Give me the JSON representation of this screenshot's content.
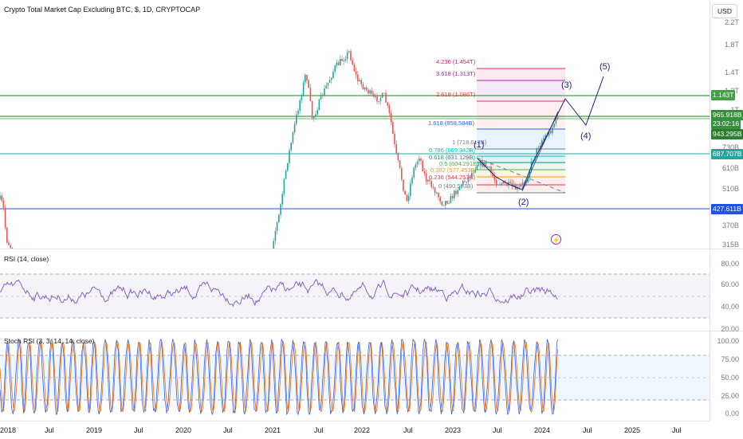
{
  "header": {
    "symbol_title": "Crypto Total Market Cap Excluding BTC, $, 1D, CRYPTOCAP",
    "currency_button": "USD"
  },
  "price_axis": {
    "ticks": [
      "2.2T",
      "1.8T",
      "1.4T",
      "1.2T",
      "1T",
      "730B",
      "610B",
      "510B",
      "370B",
      "315B"
    ],
    "badges": [
      {
        "text": "1.143T",
        "color": "#43a047"
      },
      {
        "text": "965.918B",
        "color": "#388e3c"
      },
      {
        "text": "23:02:16",
        "color": "#388e3c"
      },
      {
        "text": "943.295B",
        "color": "#2e7d32"
      },
      {
        "text": "687.707B",
        "color": "#26a69a"
      },
      {
        "text": "427.611B",
        "color": "#1e53e5"
      }
    ]
  },
  "fib_levels": [
    {
      "label": "4.236 (1.454T)",
      "color": "#e91e63"
    },
    {
      "label": "3.618 (1.313T)",
      "color": "#9c27b0"
    },
    {
      "label": "2.618 (1.086T)",
      "color": "#f23645"
    },
    {
      "label": "1.618 (858.584B)",
      "color": "#2962ff"
    },
    {
      "label": "1 (718.017B)",
      "color": "#787b86"
    },
    {
      "label": "0.786 (669.342B)",
      "color": "#00bcd4"
    },
    {
      "label": "0.618 (631.129B)",
      "color": "#009688"
    },
    {
      "label": "0.5 (604.291B)",
      "color": "#4caf50"
    },
    {
      "label": "0.382 (577.453B)",
      "color": "#ff9800"
    },
    {
      "label": "0.236 (544.253B)",
      "color": "#f23645"
    },
    {
      "label": "0 (490.553B)",
      "color": "#787b86"
    }
  ],
  "waves": [
    "(1)",
    "(2)",
    "(3)",
    "(4)",
    "(5)"
  ],
  "rsi": {
    "label": "RSI (14, close)",
    "ticks": [
      "80.00",
      "60.00",
      "40.00",
      "20.00"
    ]
  },
  "stoch": {
    "label": "Stoch RSI (3, 3, 14, 14, close)",
    "ticks": [
      "100.00",
      "75.00",
      "50.00",
      "25.00",
      "0.00"
    ]
  },
  "time_axis": [
    "2018",
    "Jul",
    "2019",
    "Jul",
    "2020",
    "Jul",
    "2021",
    "Jul",
    "2022",
    "Jul",
    "2023",
    "Jul",
    "2024",
    "Jul",
    "2025",
    "Jul"
  ],
  "colors": {
    "up": "#26a69a",
    "down": "#ef5350",
    "rsi_line": "#7e57c2",
    "stoch_k": "#2962ff",
    "stoch_d": "#ff6d00",
    "alert_icon": "#9c27b0"
  }
}
